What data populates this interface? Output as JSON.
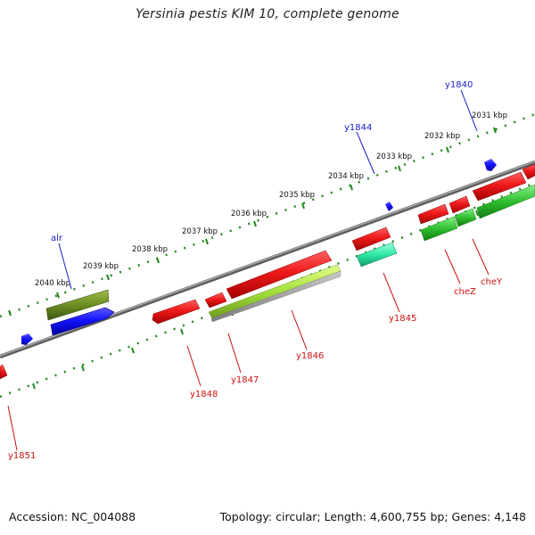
{
  "header": {
    "title": "Yersinia pestis KIM 10, complete genome"
  },
  "footer": {
    "accession": "Accession: NC_004088",
    "summary": "Topology: circular; Length: 4,600,755 bp; Genes: 4,148"
  },
  "scale": {
    "kbp_labels": [
      "2031 kbp",
      "2032 kbp",
      "2033 kbp",
      "2034 kbp",
      "2035 kbp",
      "2036 kbp",
      "2037 kbp",
      "2038 kbp",
      "2039 kbp",
      "2040 kbp"
    ]
  },
  "genes": {
    "forward_labels": [
      "alr",
      "y1844",
      "y1840"
    ],
    "reverse_labels": [
      "y1851",
      "y1848",
      "y1847",
      "y1846",
      "y1845",
      "cheZ",
      "cheY"
    ]
  },
  "colors": {
    "backbone": "#7a7a7a",
    "tick": "#1f8a1f",
    "forward_label": "#1a1acc",
    "reverse_label": "#cc1010",
    "red_gene": "#e31414",
    "blue_gene": "#1a1aff",
    "olive_gene": "#6b8e23",
    "lime_gene": "#9acd32",
    "teal_gene": "#2ee8a6",
    "green_gene": "#2fbf2f"
  }
}
